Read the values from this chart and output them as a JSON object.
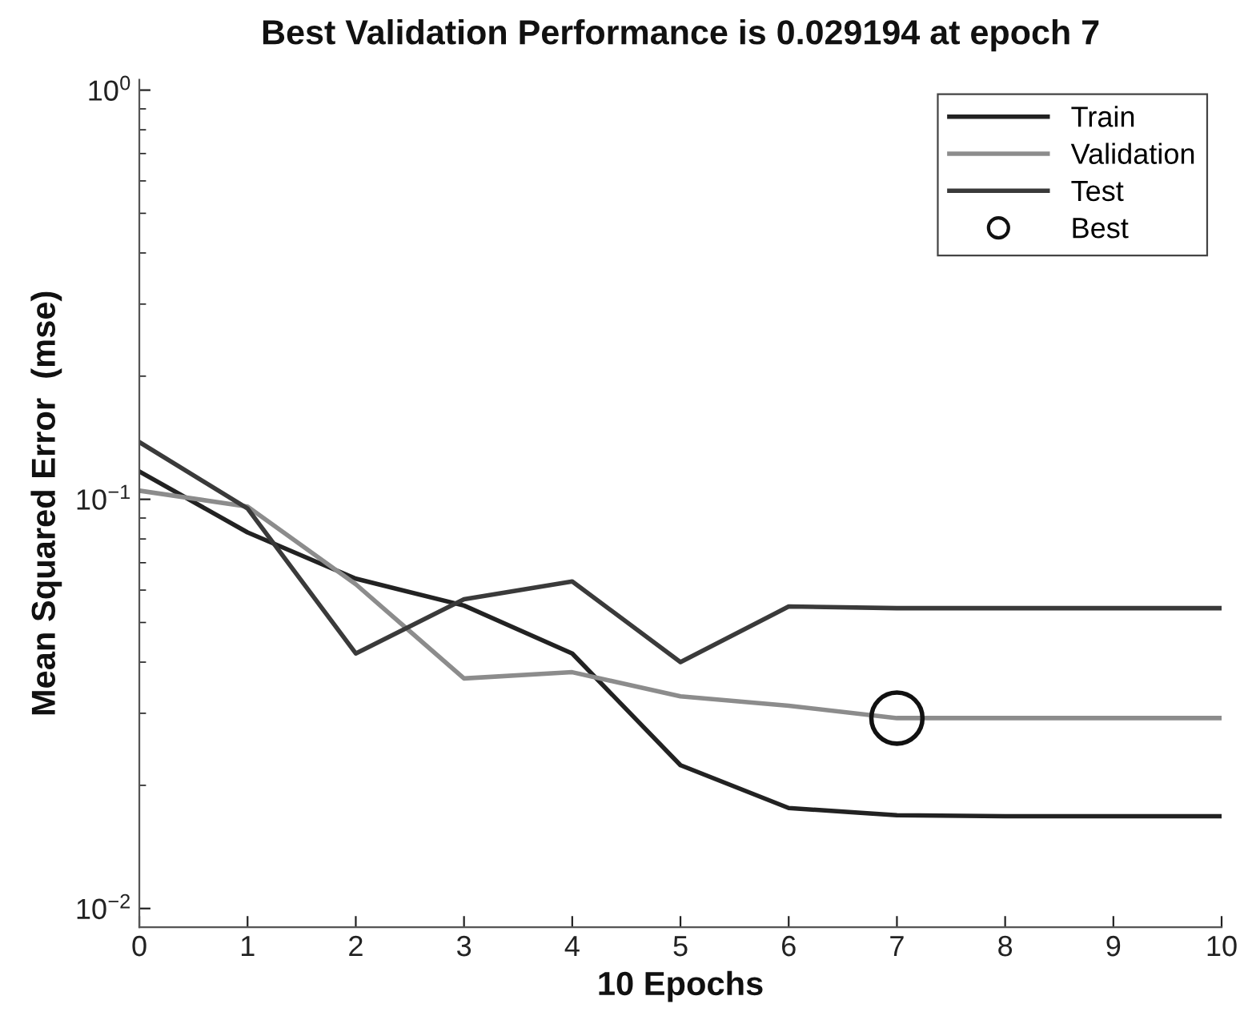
{
  "chart_data": {
    "type": "line",
    "title": "Best Validation Performance is 0.029194 at epoch 7",
    "xlabel": "10 Epochs",
    "ylabel": "Mean Squared Error  (mse)",
    "x": [
      0,
      1,
      2,
      3,
      4,
      5,
      6,
      7,
      8,
      9,
      10
    ],
    "series": [
      {
        "name": "Train",
        "color": "#222222",
        "values": [
          0.117,
          0.083,
          0.064,
          0.055,
          0.042,
          0.0224,
          0.0176,
          0.0169,
          0.0168,
          0.0168,
          0.0168
        ]
      },
      {
        "name": "Validation",
        "color": "#8c8c8c",
        "values": [
          0.105,
          0.096,
          0.062,
          0.0365,
          0.0378,
          0.033,
          0.0313,
          0.0292,
          0.0292,
          0.0292,
          0.0292
        ]
      },
      {
        "name": "Test",
        "color": "#3a3a3a",
        "values": [
          0.138,
          0.095,
          0.042,
          0.057,
          0.063,
          0.04,
          0.0547,
          0.0542,
          0.0542,
          0.0542,
          0.0542
        ]
      },
      {
        "name": "Best",
        "type": "scatter",
        "color": "#111111",
        "marker": "circle",
        "x": [
          7
        ],
        "values": [
          0.029194
        ]
      }
    ],
    "log": "y",
    "xlim": [
      0,
      10
    ],
    "ylim": [
      0.009,
      1.06
    ],
    "xticks": [
      0,
      1,
      2,
      3,
      4,
      5,
      6,
      7,
      8,
      9,
      10
    ],
    "yticks": [
      {
        "value": 0.01,
        "label": "10$^{−2}$"
      },
      {
        "value": 0.02,
        "label": null
      },
      {
        "value": 0.03,
        "label": null
      },
      {
        "value": 0.04,
        "label": null
      },
      {
        "value": 0.05,
        "label": null
      },
      {
        "value": 0.06,
        "label": null
      },
      {
        "value": 0.07,
        "label": null
      },
      {
        "value": 0.08,
        "label": null
      },
      {
        "value": 0.09,
        "label": null
      },
      {
        "value": 0.1,
        "label": "10$^{−1}$"
      },
      {
        "value": 0.2,
        "label": null
      },
      {
        "value": 0.3,
        "label": null
      },
      {
        "value": 0.4,
        "label": null
      },
      {
        "value": 0.5,
        "label": null
      },
      {
        "value": 0.6,
        "label": null
      },
      {
        "value": 0.7,
        "label": null
      },
      {
        "value": 0.8,
        "label": null
      },
      {
        "value": 0.9,
        "label": null
      },
      {
        "value": 1,
        "label": "10$^{0}$"
      }
    ],
    "legend": "top right",
    "grid": false,
    "marker": "none",
    "line_style": "solid"
  }
}
